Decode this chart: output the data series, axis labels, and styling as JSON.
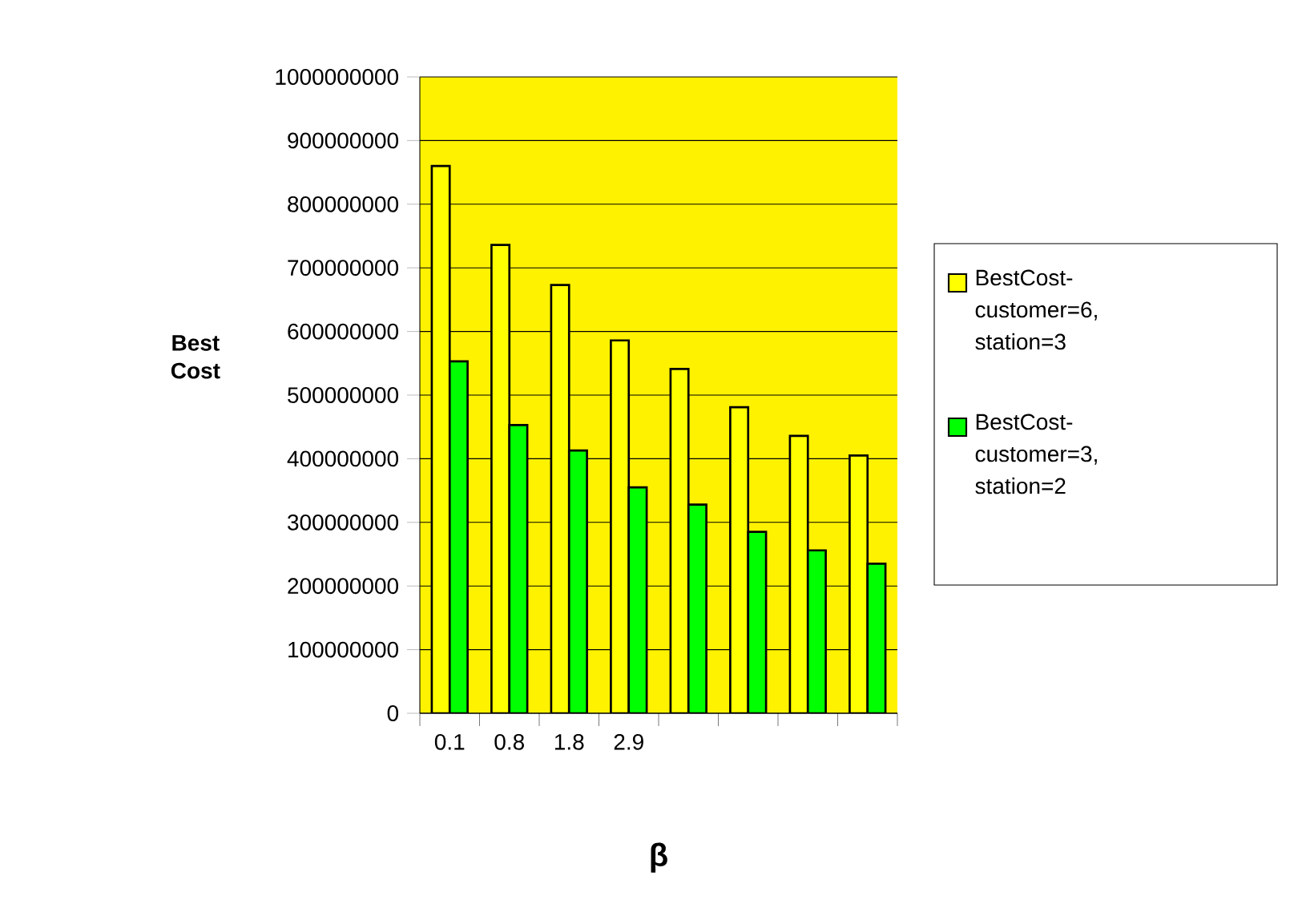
{
  "chart_data": {
    "type": "bar",
    "xlabel": "β",
    "ylabel": "Best Cost",
    "categories": [
      "0.1",
      "0.8",
      "1.8",
      "2.9",
      null,
      null,
      null,
      null
    ],
    "series": [
      {
        "name": "BestCost-customer=6, station=3",
        "color": "#ffff00",
        "values": [
          860000000,
          736000000,
          673000000,
          586000000,
          541000000,
          481000000,
          436000000,
          405000000
        ]
      },
      {
        "name": "BestCost-customer=3, station=2",
        "color": "#00ff00",
        "values": [
          553000000,
          453000000,
          413000000,
          355000000,
          328000000,
          285000000,
          256000000,
          235000000
        ]
      }
    ],
    "ylim": [
      0,
      1000000000
    ],
    "yticks": [
      0,
      100000000,
      200000000,
      300000000,
      400000000,
      500000000,
      600000000,
      700000000,
      800000000,
      900000000,
      1000000000
    ],
    "grid": "y",
    "legend": "right"
  }
}
